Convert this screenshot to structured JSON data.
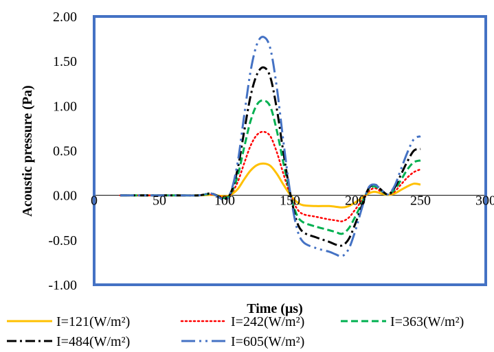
{
  "chart_data": {
    "type": "line",
    "title": "",
    "xlabel": "Time (μs)",
    "ylabel": "Acoustic pressure (Pa)",
    "xlim": [
      0,
      300
    ],
    "ylim": [
      -1.0,
      2.0
    ],
    "x_ticks": [
      "0",
      "50",
      "100",
      "150",
      "200",
      "250",
      "300"
    ],
    "y_ticks": [
      "2.00",
      "1.50",
      "1.00",
      "0.50",
      "0.00",
      "-0.50",
      "-1.00"
    ],
    "grid": false,
    "legend_position": "bottom",
    "series": [
      {
        "name": "I=121(W/m²)",
        "color": "#FFC000",
        "dash": "solid",
        "points": [
          [
            20,
            0
          ],
          [
            60,
            0
          ],
          [
            80,
            0
          ],
          [
            90,
            0.005
          ],
          [
            100,
            -0.01
          ],
          [
            105,
            0.01
          ],
          [
            110,
            0.07
          ],
          [
            115,
            0.18
          ],
          [
            120,
            0.28
          ],
          [
            125,
            0.34
          ],
          [
            130,
            0.355
          ],
          [
            135,
            0.33
          ],
          [
            140,
            0.24
          ],
          [
            145,
            0.12
          ],
          [
            150,
            0.01
          ],
          [
            155,
            -0.07
          ],
          [
            160,
            -0.11
          ],
          [
            170,
            -0.12
          ],
          [
            180,
            -0.12
          ],
          [
            190,
            -0.135
          ],
          [
            195,
            -0.12
          ],
          [
            200,
            -0.08
          ],
          [
            205,
            -0.03
          ],
          [
            210,
            0.02
          ],
          [
            215,
            0.04
          ],
          [
            220,
            0.02
          ],
          [
            225,
            0.005
          ],
          [
            230,
            0.02
          ],
          [
            235,
            0.06
          ],
          [
            240,
            0.1
          ],
          [
            245,
            0.13
          ],
          [
            250,
            0.12
          ]
        ]
      },
      {
        "name": "I=242(W/m²)",
        "color": "#FF0000",
        "dash": "dotted",
        "points": [
          [
            20,
            0
          ],
          [
            60,
            0
          ],
          [
            80,
            0
          ],
          [
            90,
            0.01
          ],
          [
            100,
            -0.02
          ],
          [
            105,
            0.02
          ],
          [
            110,
            0.15
          ],
          [
            115,
            0.36
          ],
          [
            120,
            0.56
          ],
          [
            125,
            0.68
          ],
          [
            130,
            0.71
          ],
          [
            135,
            0.66
          ],
          [
            140,
            0.48
          ],
          [
            145,
            0.24
          ],
          [
            150,
            0.02
          ],
          [
            155,
            -0.14
          ],
          [
            160,
            -0.21
          ],
          [
            170,
            -0.24
          ],
          [
            180,
            -0.27
          ],
          [
            185,
            -0.28
          ],
          [
            190,
            -0.29
          ],
          [
            195,
            -0.25
          ],
          [
            200,
            -0.16
          ],
          [
            205,
            -0.06
          ],
          [
            210,
            0.04
          ],
          [
            215,
            0.08
          ],
          [
            220,
            0.04
          ],
          [
            225,
            0.01
          ],
          [
            230,
            0.04
          ],
          [
            235,
            0.12
          ],
          [
            240,
            0.2
          ],
          [
            245,
            0.26
          ],
          [
            250,
            0.29
          ]
        ]
      },
      {
        "name": "I=363(W/m²)",
        "color": "#00B050",
        "dash": "dashed",
        "points": [
          [
            20,
            0
          ],
          [
            60,
            0
          ],
          [
            80,
            0
          ],
          [
            90,
            0.015
          ],
          [
            100,
            -0.03
          ],
          [
            105,
            0.03
          ],
          [
            110,
            0.22
          ],
          [
            115,
            0.54
          ],
          [
            120,
            0.84
          ],
          [
            125,
            1.02
          ],
          [
            130,
            1.06
          ],
          [
            135,
            0.99
          ],
          [
            140,
            0.72
          ],
          [
            145,
            0.36
          ],
          [
            150,
            0.03
          ],
          [
            155,
            -0.21
          ],
          [
            160,
            -0.3
          ],
          [
            170,
            -0.35
          ],
          [
            180,
            -0.39
          ],
          [
            185,
            -0.41
          ],
          [
            190,
            -0.43
          ],
          [
            195,
            -0.37
          ],
          [
            200,
            -0.24
          ],
          [
            205,
            -0.09
          ],
          [
            210,
            0.06
          ],
          [
            215,
            0.1
          ],
          [
            220,
            0.05
          ],
          [
            225,
            0.01
          ],
          [
            230,
            0.06
          ],
          [
            235,
            0.17
          ],
          [
            240,
            0.29
          ],
          [
            245,
            0.37
          ],
          [
            250,
            0.39
          ]
        ]
      },
      {
        "name": "I=484(W/m²)",
        "color": "#000000",
        "dash": "dashdot",
        "points": [
          [
            20,
            0
          ],
          [
            60,
            0
          ],
          [
            80,
            0
          ],
          [
            90,
            0.02
          ],
          [
            100,
            -0.04
          ],
          [
            105,
            0.04
          ],
          [
            110,
            0.3
          ],
          [
            115,
            0.72
          ],
          [
            120,
            1.12
          ],
          [
            125,
            1.36
          ],
          [
            130,
            1.43
          ],
          [
            135,
            1.32
          ],
          [
            140,
            0.96
          ],
          [
            145,
            0.48
          ],
          [
            150,
            0.04
          ],
          [
            155,
            -0.28
          ],
          [
            160,
            -0.41
          ],
          [
            170,
            -0.47
          ],
          [
            180,
            -0.52
          ],
          [
            185,
            -0.55
          ],
          [
            190,
            -0.56
          ],
          [
            195,
            -0.49
          ],
          [
            200,
            -0.32
          ],
          [
            205,
            -0.12
          ],
          [
            210,
            0.07
          ],
          [
            215,
            0.12
          ],
          [
            220,
            0.06
          ],
          [
            225,
            0.01
          ],
          [
            230,
            0.08
          ],
          [
            235,
            0.23
          ],
          [
            240,
            0.38
          ],
          [
            245,
            0.5
          ],
          [
            250,
            0.52
          ]
        ]
      },
      {
        "name": "I=605(W/m²)",
        "color": "#4472C4",
        "dash": "dashdotdot",
        "points": [
          [
            20,
            0
          ],
          [
            60,
            0
          ],
          [
            80,
            0
          ],
          [
            90,
            0.02
          ],
          [
            100,
            -0.05
          ],
          [
            105,
            0.05
          ],
          [
            110,
            0.37
          ],
          [
            115,
            0.9
          ],
          [
            120,
            1.4
          ],
          [
            125,
            1.7
          ],
          [
            130,
            1.77
          ],
          [
            135,
            1.64
          ],
          [
            140,
            1.2
          ],
          [
            145,
            0.6
          ],
          [
            150,
            0.05
          ],
          [
            155,
            -0.35
          ],
          [
            160,
            -0.52
          ],
          [
            170,
            -0.59
          ],
          [
            180,
            -0.63
          ],
          [
            185,
            -0.66
          ],
          [
            190,
            -0.68
          ],
          [
            195,
            -0.6
          ],
          [
            200,
            -0.4
          ],
          [
            205,
            -0.15
          ],
          [
            210,
            0.08
          ],
          [
            215,
            0.12
          ],
          [
            220,
            0.06
          ],
          [
            225,
            0.01
          ],
          [
            230,
            0.1
          ],
          [
            235,
            0.29
          ],
          [
            240,
            0.48
          ],
          [
            245,
            0.63
          ],
          [
            250,
            0.66
          ]
        ]
      }
    ]
  }
}
